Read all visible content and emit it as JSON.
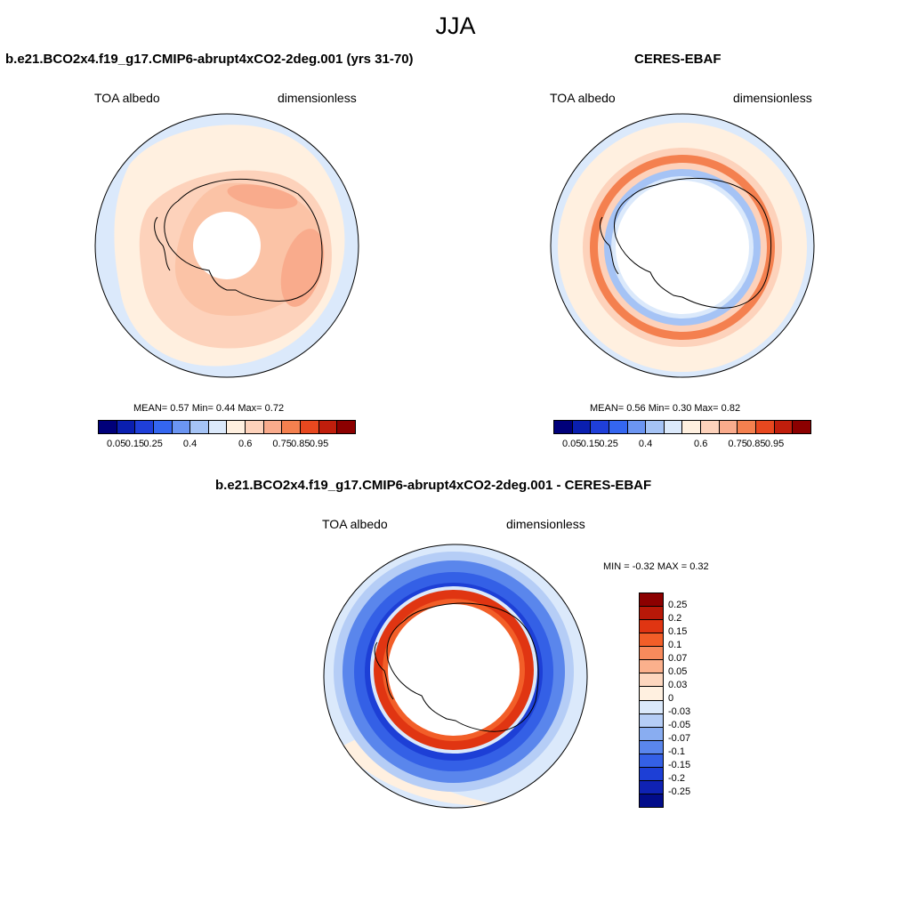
{
  "main_title": "JJA",
  "panels": [
    {
      "title": "b.e21.BCO2x4.f19_g17.CMIP6-abrupt4xCO2-2deg.001 (yrs 31-70)",
      "left_label": "TOA albedo",
      "right_label": "dimensionless",
      "stats": "MEAN=   0.57  Min=   0.44  Max=   0.72"
    },
    {
      "title": "CERES-EBAF",
      "left_label": "TOA albedo",
      "right_label": "dimensionless",
      "stats": "MEAN=   0.56  Min=   0.30  Max=   0.82"
    },
    {
      "title": "b.e21.BCO2x4.f19_g17.CMIP6-abrupt4xCO2-2deg.001 - CERES-EBAF",
      "left_label": "TOA albedo",
      "right_label": "dimensionless",
      "stats": "MIN =  -0.32 MAX =   0.32"
    }
  ],
  "albedo_colorbar": {
    "colors": [
      "#00007a",
      "#0a1fb0",
      "#1f3fd9",
      "#3466f0",
      "#6b95f2",
      "#a5c3f5",
      "#dbe9fb",
      "#fff0e0",
      "#fdd2bb",
      "#f9ab8c",
      "#f4804f",
      "#e8481f",
      "#c01e0c",
      "#8c0000"
    ],
    "ticks": [
      "0.05",
      "0.15",
      "0.25",
      "0.4",
      "0.6",
      "0.75",
      "0.85",
      "0.95"
    ]
  },
  "diff_colorbar": {
    "colors": [
      "#8c0000",
      "#b81808",
      "#e03512",
      "#f25e28",
      "#f88a5c",
      "#fbb08c",
      "#fdd6be",
      "#fff0e0",
      "#dbe9fb",
      "#b5cdf6",
      "#89adf1",
      "#5a86ec",
      "#3460e6",
      "#1d3fd6",
      "#0f22b4",
      "#020c8a"
    ],
    "ticks": [
      "0.25",
      "0.2",
      "0.15",
      "0.1",
      "0.07",
      "0.05",
      "0.03",
      "0",
      "-0.03",
      "-0.05",
      "-0.07",
      "-0.1",
      "-0.15",
      "-0.2",
      "-0.25"
    ]
  }
}
